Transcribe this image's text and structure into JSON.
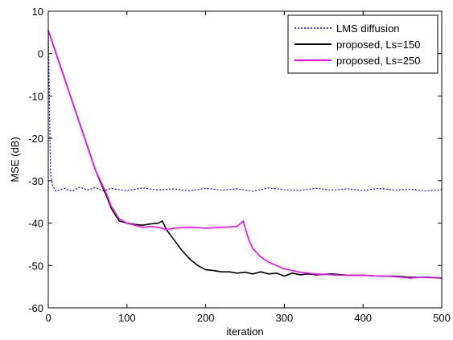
{
  "chart_data": {
    "type": "line",
    "title": "",
    "xlabel": "iteration",
    "ylabel": "MSE (dB)",
    "xlim": [
      0,
      500
    ],
    "ylim": [
      -60,
      10
    ],
    "xticks": [
      0,
      100,
      200,
      300,
      400,
      500
    ],
    "xtick_labels": [
      "0",
      "100",
      "200",
      "300",
      "400",
      "500"
    ],
    "yticks": [
      10,
      0,
      -10,
      -20,
      -30,
      -40,
      -50,
      -60
    ],
    "ytick_labels": [
      "10",
      "0",
      "-10",
      "-20",
      "-30",
      "-40",
      "-50",
      "-60"
    ],
    "grid": false,
    "legend_position": "top-right",
    "series": [
      {
        "name": "LMS diffusion",
        "color": "#0000ff",
        "style": "dotted",
        "x": [
          0,
          1,
          2,
          3,
          5,
          8,
          10,
          20,
          30,
          40,
          50,
          60,
          70,
          80,
          90,
          100,
          120,
          140,
          160,
          180,
          200,
          220,
          240,
          260,
          280,
          300,
          320,
          340,
          360,
          380,
          400,
          420,
          440,
          460,
          480,
          500
        ],
        "y": [
          5.5,
          -5,
          -20,
          -28,
          -31,
          -32,
          -32.5,
          -31.8,
          -32.5,
          -31.5,
          -32.2,
          -31.6,
          -32.4,
          -31.8,
          -32.1,
          -32.3,
          -31.7,
          -32.2,
          -31.9,
          -32.4,
          -31.8,
          -32.2,
          -31.9,
          -32.5,
          -31.7,
          -32.1,
          -32.3,
          -31.8,
          -32.2,
          -31.9,
          -32.3,
          -31.8,
          -32.2,
          -32.0,
          -32.4,
          -32.1
        ]
      },
      {
        "name": "proposed, Ls=150",
        "color": "#000000",
        "style": "solid",
        "x": [
          0,
          10,
          20,
          30,
          40,
          50,
          60,
          70,
          75,
          80,
          90,
          100,
          110,
          120,
          130,
          140,
          145,
          150,
          160,
          170,
          180,
          190,
          200,
          210,
          220,
          230,
          240,
          250,
          260,
          270,
          280,
          290,
          300,
          310,
          320,
          330,
          340,
          360,
          380,
          400,
          420,
          440,
          460,
          480,
          500
        ],
        "y": [
          5.5,
          0,
          -5.5,
          -11,
          -16.5,
          -22,
          -27.5,
          -32,
          -34,
          -36.5,
          -39.5,
          -40,
          -40.3,
          -40.5,
          -40.2,
          -40,
          -39.5,
          -41.5,
          -44,
          -46.5,
          -48.5,
          -50,
          -51,
          -51.2,
          -51.5,
          -51.5,
          -51.8,
          -51.6,
          -52,
          -51.5,
          -52,
          -51.8,
          -52.5,
          -51.8,
          -52.2,
          -52,
          -52.2,
          -52,
          -52.3,
          -52.3,
          -52.5,
          -52.5,
          -52.8,
          -52.8,
          -53
        ]
      },
      {
        "name": "proposed, Ls=250",
        "color": "#ff00ff",
        "style": "solid",
        "x": [
          0,
          10,
          20,
          30,
          40,
          50,
          60,
          70,
          75,
          80,
          90,
          100,
          110,
          120,
          130,
          140,
          150,
          160,
          180,
          200,
          220,
          240,
          245,
          248,
          250,
          255,
          260,
          270,
          280,
          290,
          300,
          310,
          320,
          330,
          340,
          360,
          380,
          400,
          420,
          440,
          460,
          480,
          500
        ],
        "y": [
          5.5,
          0,
          -5.5,
          -11,
          -16.5,
          -22,
          -27.5,
          -31.5,
          -33.5,
          -36,
          -39,
          -40,
          -40.5,
          -41,
          -40.8,
          -41,
          -41.5,
          -41.2,
          -41,
          -41.2,
          -41,
          -40.8,
          -40,
          -39.5,
          -41,
          -44,
          -46,
          -48,
          -49.2,
          -50,
          -50.8,
          -51.2,
          -51.6,
          -51.8,
          -52,
          -52.2,
          -52.3,
          -52.3,
          -52.5,
          -52.6,
          -53,
          -52.7,
          -53
        ]
      }
    ]
  }
}
